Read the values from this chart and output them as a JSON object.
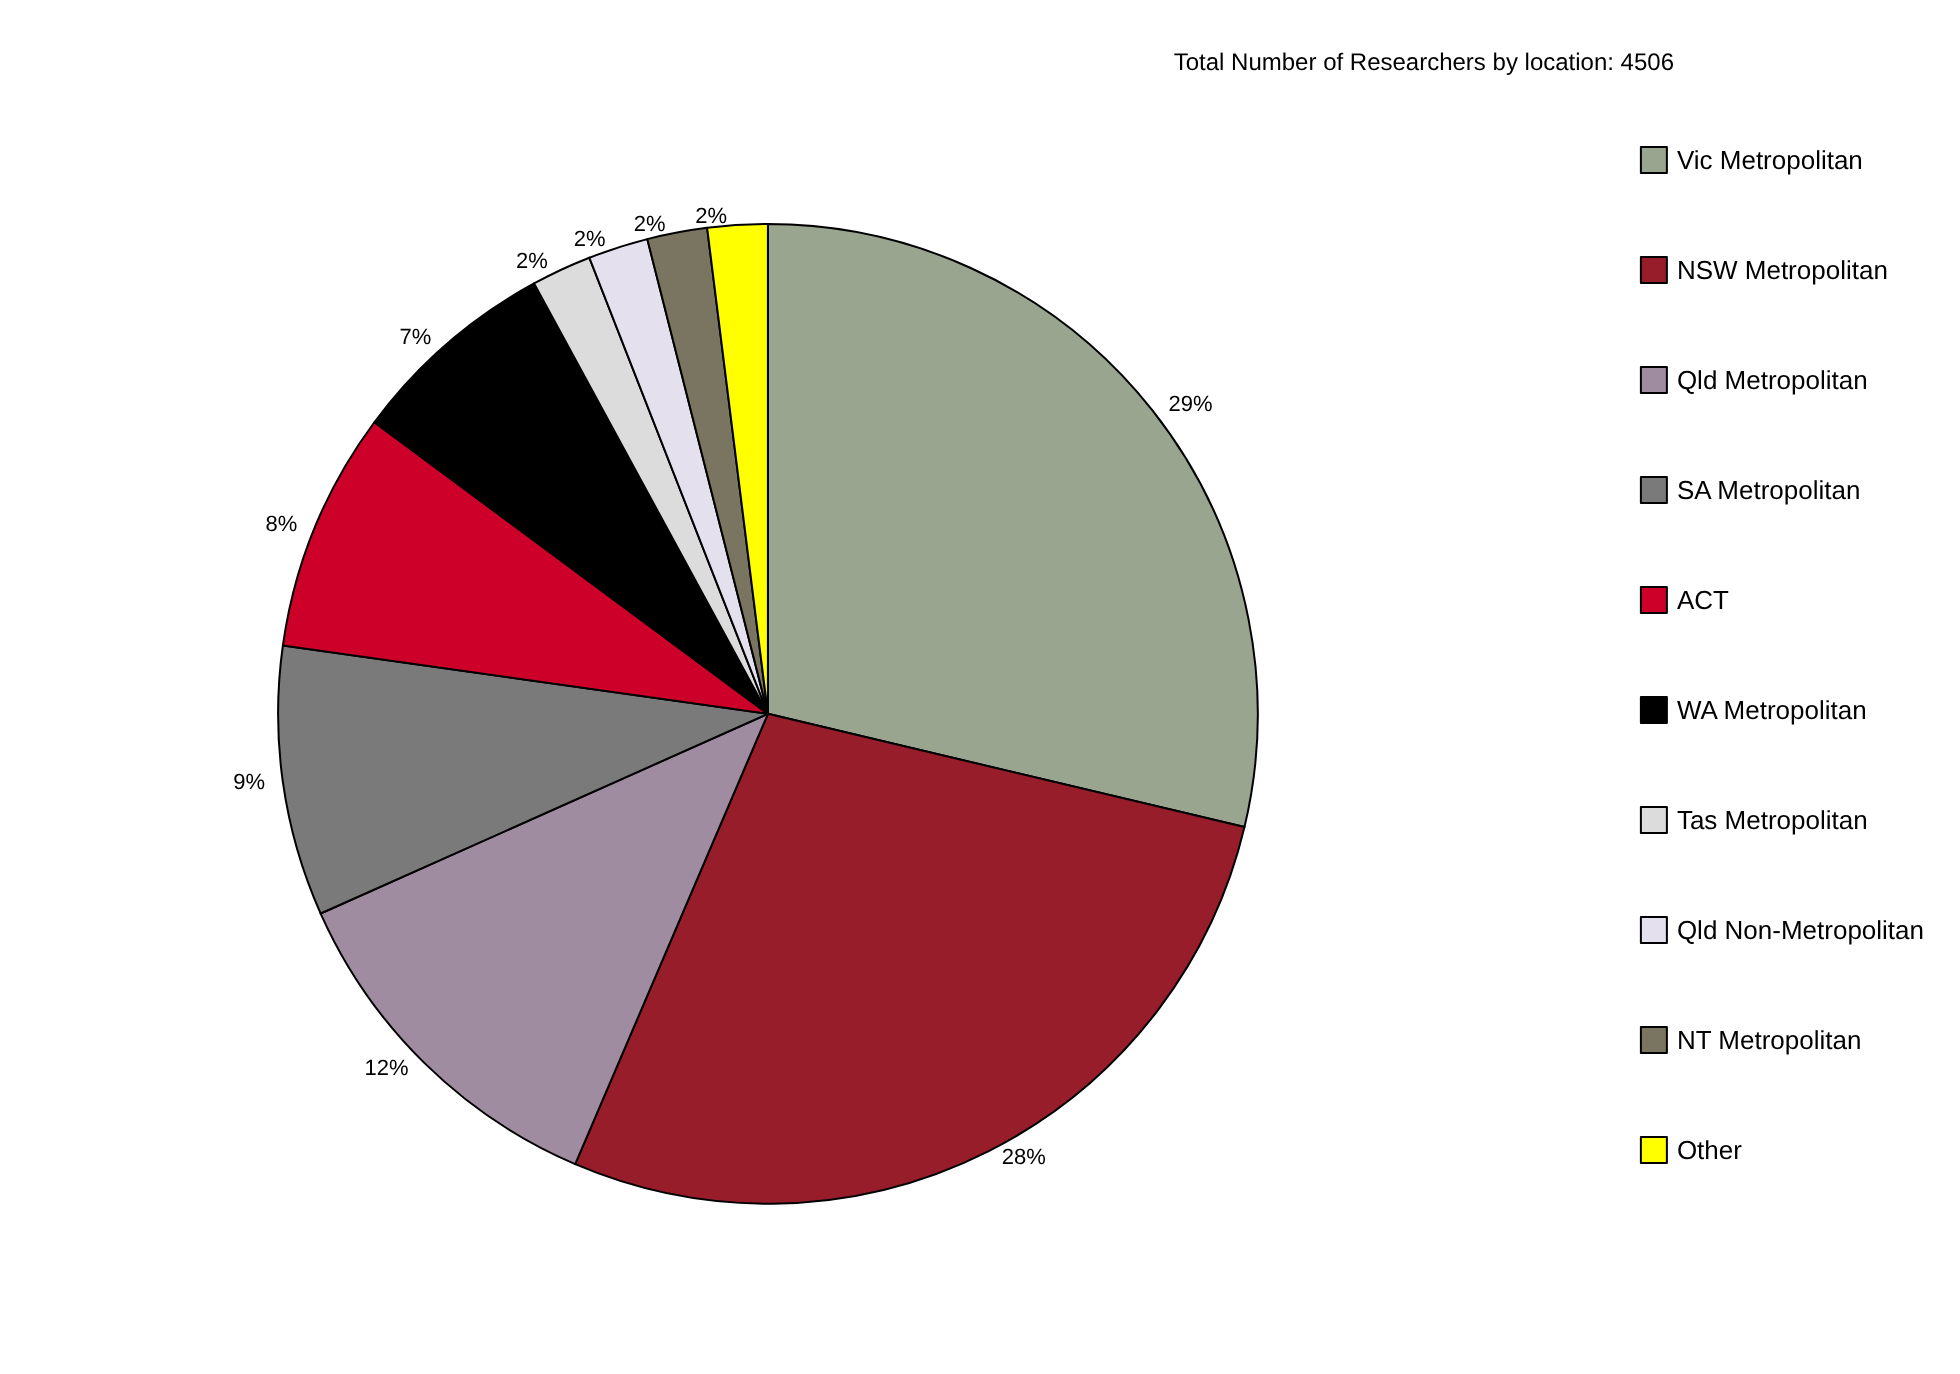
{
  "chart_data": {
    "type": "pie",
    "title": "Total Number of Researchers by location: 4506",
    "categories": [
      "Vic Metropolitan",
      "NSW Metropolitan",
      "Qld Metropolitan",
      "SA Metropolitan",
      "ACT",
      "WA Metropolitan",
      "Tas Metropolitan",
      "Qld Non-Metropolitan",
      "NT Metropolitan",
      "Other"
    ],
    "values": [
      29,
      28,
      12,
      9,
      8,
      7,
      2,
      2,
      2,
      2
    ],
    "value_labels": [
      "29%",
      "28%",
      "12%",
      "9%",
      "8%",
      "7%",
      "2%",
      "2%",
      "2%",
      "2%"
    ],
    "colors": [
      "#9aa590",
      "#971d2b",
      "#a08ca0",
      "#7a7a7a",
      "#cc0029",
      "#000000",
      "#dcdcdc",
      "#e4e0ee",
      "#7a7560",
      "#ffff00"
    ],
    "legend": "right"
  }
}
